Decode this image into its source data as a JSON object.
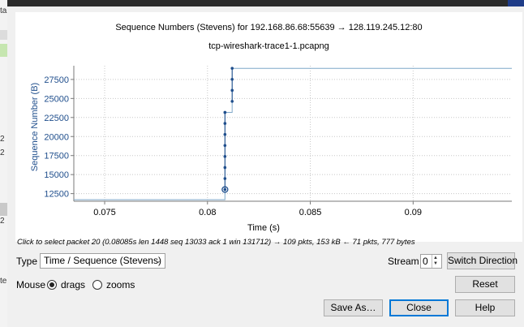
{
  "window": {
    "accent_color": "#1f3c88"
  },
  "background_fragments": [
    "ta",
    "2",
    "2",
    "2",
    "te"
  ],
  "plot": {
    "title": "Sequence Numbers (Stevens) for 192.168.86.68:55639 → 128.119.245.12:80",
    "subtitle": "tcp-wireshark-trace1-1.pcapng"
  },
  "chart_data": {
    "type": "line",
    "title": "Sequence Numbers (Stevens) for 192.168.86.68:55639 → 128.119.245.12:80",
    "subtitle": "tcp-wireshark-trace1-1.pcapng",
    "xlabel": "Time (s)",
    "ylabel": "Sequence Number (B)",
    "xlim": [
      0.0735,
      0.0948
    ],
    "ylim": [
      11500,
      29300
    ],
    "xticks": [
      0.075,
      0.08,
      0.085,
      0.09
    ],
    "xtick_labels": [
      "0.075",
      "0.08",
      "0.085",
      "0.09"
    ],
    "yticks": [
      12500,
      15000,
      17500,
      20000,
      22500,
      25000,
      27500
    ],
    "ytick_labels": [
      "12500",
      "15000",
      "17500",
      "20000",
      "22500",
      "25000",
      "27500"
    ],
    "grid": true,
    "series": [
      {
        "name": "",
        "kind": "points",
        "x": [
          0.08085,
          0.08085,
          0.08085,
          0.08085,
          0.08085,
          0.08085,
          0.08085,
          0.08085,
          0.08085,
          0.0812,
          0.0812,
          0.0812,
          0.0812
        ],
        "y": [
          13033,
          14481,
          15929,
          17377,
          18825,
          20273,
          21721,
          23169,
          23169,
          24617,
          26065,
          27513,
          28961
        ]
      },
      {
        "name": "",
        "kind": "window_step",
        "x": [
          0.0735,
          0.08085,
          0.08085,
          0.0812,
          0.0812,
          0.0948
        ],
        "y": [
          11700,
          11700,
          23169,
          23169,
          28961,
          28961
        ]
      }
    ],
    "selected_point": {
      "x": 0.08085,
      "y": 13033
    }
  },
  "status_hint": "Click to select packet 20 (0.08085s len 1448 seq 13033 ack 1 win 131712) → 109 pkts, 153 kB ← 71 pkts, 777 bytes",
  "controls": {
    "type_label": "Type",
    "type_value": "Time / Sequence (Stevens)",
    "stream_label": "Stream",
    "stream_value": "0",
    "switch_direction": "Switch Direction",
    "mouse_label": "Mouse",
    "drags_label": "drags",
    "zooms_label": "zooms",
    "reset": "Reset",
    "save_as": "Save As…",
    "close": "Close",
    "help": "Help"
  },
  "colors": {
    "series": "#1f4e8c",
    "window_line": "#7fa8c9",
    "selected_ring": "#1f4e8c",
    "default_button_border": "#0078d7"
  }
}
